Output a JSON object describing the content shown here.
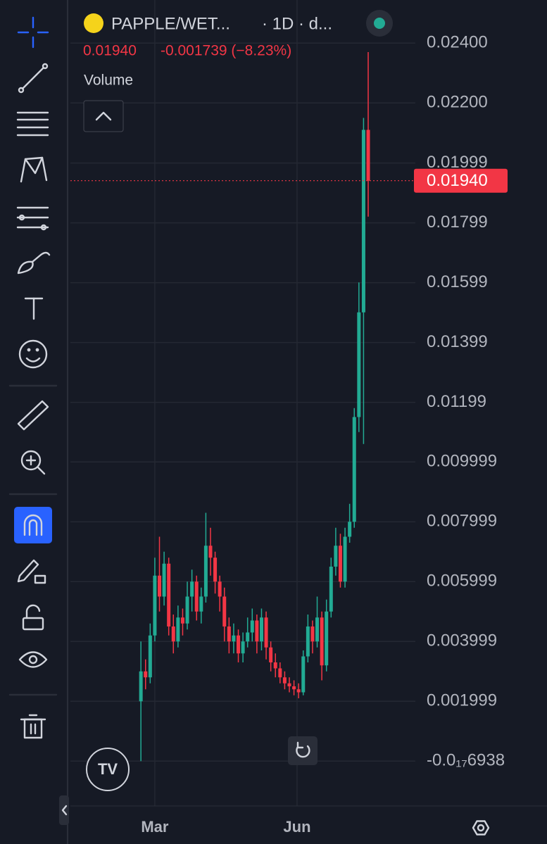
{
  "chart_data": {
    "type": "candlestick",
    "title": "PAPPLE/WET...",
    "subtitle": "· 1D · d...",
    "last_price": {
      "value": 0.0194,
      "label": "0.01940"
    },
    "change_label": "-0.001739 (−8.23%)",
    "volume_label": "Volume",
    "up_color": "#22ab94",
    "down_color": "#f23645",
    "grid": true,
    "xlim": [
      5.4,
      228.5
    ],
    "xticks": [
      {
        "value": 60,
        "label": "Mar"
      },
      {
        "value": 152,
        "label": "Jun"
      }
    ],
    "ylim": [
      -0.0015,
      0.02544
    ],
    "yticks": [
      {
        "value": 0.024,
        "label": "0.02400"
      },
      {
        "value": 0.022,
        "label": "0.02200"
      },
      {
        "value": 0.01999,
        "label": "0.01999"
      },
      {
        "value": 0.01799,
        "label": "0.01799"
      },
      {
        "value": 0.01599,
        "label": "0.01599"
      },
      {
        "value": 0.01399,
        "label": "0.01399"
      },
      {
        "value": 0.01199,
        "label": "0.01199"
      },
      {
        "value": 0.009999,
        "label": "0.009999"
      },
      {
        "value": 0.007999,
        "label": "0.007999"
      },
      {
        "value": 0.005999,
        "label": "0.005999"
      },
      {
        "value": 0.003999,
        "label": "0.003999"
      },
      {
        "value": 0.001999,
        "label": "0.001999"
      },
      {
        "value": -6.938e-18,
        "label": "-0.0₁₇6938"
      }
    ],
    "x": [
      51,
      54,
      57,
      60,
      63,
      66,
      69,
      72,
      75,
      78,
      81,
      84,
      87,
      90,
      93,
      96,
      99,
      102,
      105,
      108,
      111,
      114,
      117,
      120,
      123,
      126,
      129,
      132,
      135,
      138,
      141,
      144,
      147,
      150,
      153,
      156,
      159,
      162,
      165,
      168,
      171,
      174,
      177,
      180,
      183,
      186,
      189,
      192,
      195,
      198
    ],
    "open": [
      0.002,
      0.003,
      0.0028,
      0.0042,
      0.0062,
      0.0055,
      0.0066,
      0.0045,
      0.004,
      0.0048,
      0.0046,
      0.0055,
      0.006,
      0.005,
      0.0055,
      0.0072,
      0.0068,
      0.006,
      0.0055,
      0.0045,
      0.004,
      0.0042,
      0.0036,
      0.004,
      0.0043,
      0.0047,
      0.004,
      0.0048,
      0.0038,
      0.0033,
      0.0031,
      0.0028,
      0.0026,
      0.0025,
      0.0024,
      0.0023,
      0.0035,
      0.0045,
      0.004,
      0.0048,
      0.0032,
      0.005,
      0.0065,
      0.0072,
      0.006,
      0.0075,
      0.008,
      0.0115,
      0.015,
      0.0211
    ],
    "high": [
      0.004,
      0.0034,
      0.0046,
      0.0068,
      0.0075,
      0.007,
      0.0068,
      0.0049,
      0.0052,
      0.0051,
      0.006,
      0.0064,
      0.0062,
      0.0058,
      0.0083,
      0.0078,
      0.007,
      0.0062,
      0.0058,
      0.0048,
      0.0046,
      0.0044,
      0.0043,
      0.0048,
      0.0051,
      0.0049,
      0.0051,
      0.005,
      0.004,
      0.0036,
      0.0033,
      0.003,
      0.0028,
      0.0027,
      0.0026,
      0.0037,
      0.0049,
      0.0047,
      0.0055,
      0.005,
      0.0054,
      0.0068,
      0.0078,
      0.0076,
      0.0078,
      0.0086,
      0.0118,
      0.016,
      0.0215,
      0.0237
    ],
    "low": [
      0.0,
      0.0024,
      0.0026,
      0.004,
      0.005,
      0.0052,
      0.0042,
      0.0036,
      0.0038,
      0.0042,
      0.0044,
      0.005,
      0.0047,
      0.0046,
      0.0053,
      0.0062,
      0.0056,
      0.005,
      0.004,
      0.0036,
      0.0036,
      0.0033,
      0.0033,
      0.0038,
      0.004,
      0.0036,
      0.0037,
      0.0034,
      0.003,
      0.0028,
      0.0026,
      0.0024,
      0.0023,
      0.0022,
      0.0021,
      0.0022,
      0.0033,
      0.0036,
      0.0038,
      0.0027,
      0.003,
      0.0048,
      0.0062,
      0.0058,
      0.0058,
      0.0073,
      0.0078,
      0.011,
      0.0106,
      0.0182
    ],
    "close": [
      0.003,
      0.0028,
      0.0042,
      0.0062,
      0.0055,
      0.0066,
      0.0045,
      0.004,
      0.0048,
      0.0046,
      0.0055,
      0.006,
      0.005,
      0.0055,
      0.0072,
      0.0068,
      0.006,
      0.0055,
      0.0045,
      0.004,
      0.0042,
      0.0036,
      0.004,
      0.0043,
      0.0047,
      0.004,
      0.0048,
      0.0038,
      0.0033,
      0.0031,
      0.0028,
      0.0026,
      0.0025,
      0.0024,
      0.0023,
      0.0035,
      0.0045,
      0.004,
      0.0048,
      0.0032,
      0.005,
      0.0065,
      0.0072,
      0.006,
      0.0075,
      0.008,
      0.0115,
      0.015,
      0.0211,
      0.0194
    ]
  }
}
